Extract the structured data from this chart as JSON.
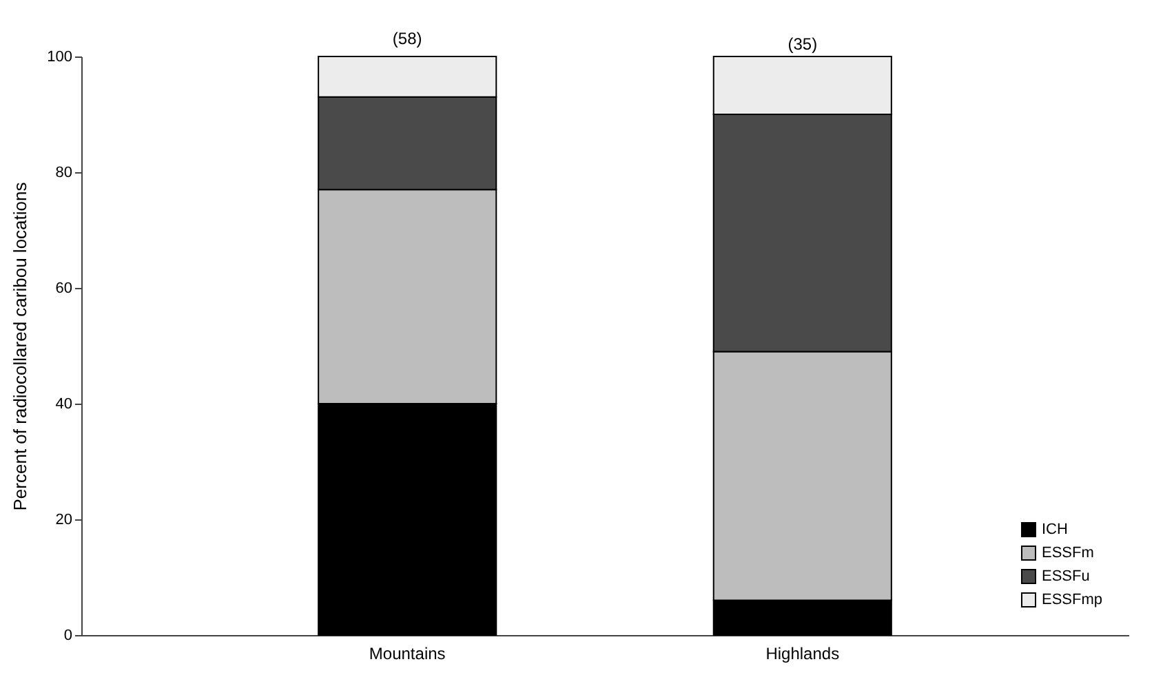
{
  "chart_data": {
    "type": "bar",
    "stacked": true,
    "ylabel": "Percent of radiocollared caribou locations",
    "categories": [
      "Mountains",
      "Highlands"
    ],
    "series": [
      {
        "name": "ICH",
        "color": "#000000",
        "values": [
          40,
          6
        ]
      },
      {
        "name": "ESSFm",
        "color": "#bdbdbd",
        "values": [
          37,
          43
        ]
      },
      {
        "name": "ESSFu",
        "color": "#4a4a4a",
        "values": [
          16,
          41
        ]
      },
      {
        "name": "ESSFmp",
        "color": "#ececec",
        "values": [
          7,
          10
        ]
      }
    ],
    "ylim": [
      0,
      100
    ],
    "yticks": [
      0,
      20,
      40,
      60,
      80,
      100
    ],
    "grid": false,
    "legend": "bottom right",
    "annotations": [
      {
        "text": "(58)",
        "x": "Mountains",
        "y": 100
      },
      {
        "text": "(35)",
        "x": "Highlands",
        "y": 99
      }
    ]
  }
}
